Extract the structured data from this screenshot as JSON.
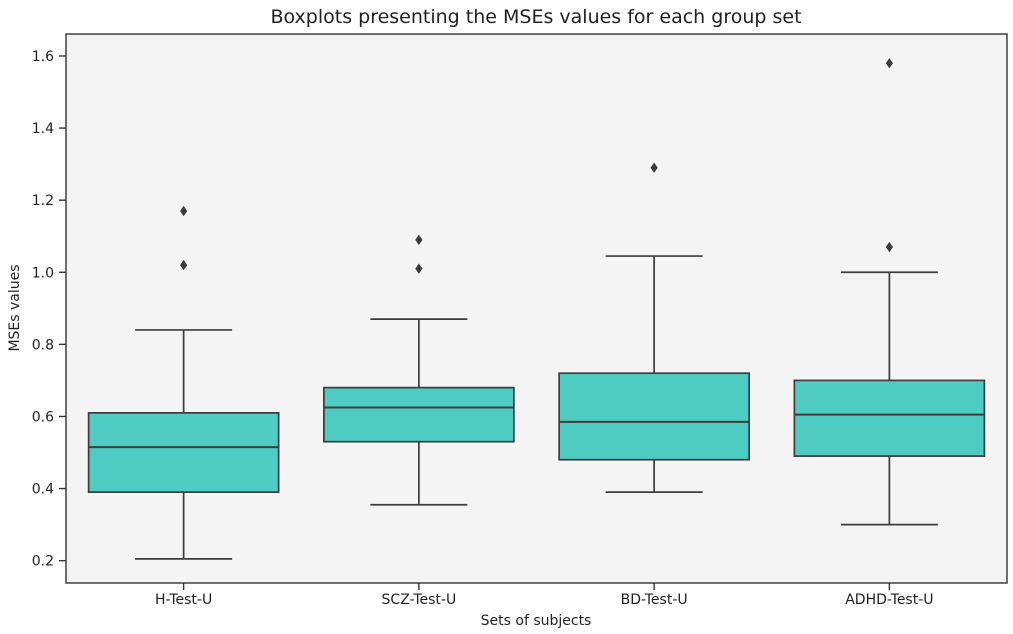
{
  "chart_data": {
    "type": "box",
    "title": "Boxplots presenting the MSEs values for each group set",
    "xlabel": "Sets of subjects",
    "ylabel": "MSEs values",
    "categories": [
      "H-Test-U",
      "SCZ-Test-U",
      "BD-Test-U",
      "ADHD-Test-U"
    ],
    "series": [
      {
        "name": "H-Test-U",
        "whisker_low": 0.205,
        "q1": 0.39,
        "median": 0.515,
        "q3": 0.61,
        "whisker_high": 0.84,
        "outliers": [
          1.02,
          1.17
        ]
      },
      {
        "name": "SCZ-Test-U",
        "whisker_low": 0.355,
        "q1": 0.53,
        "median": 0.625,
        "q3": 0.68,
        "whisker_high": 0.87,
        "outliers": [
          1.01,
          1.09
        ]
      },
      {
        "name": "BD-Test-U",
        "whisker_low": 0.39,
        "q1": 0.48,
        "median": 0.585,
        "q3": 0.72,
        "whisker_high": 1.045,
        "outliers": [
          1.29
        ]
      },
      {
        "name": "ADHD-Test-U",
        "whisker_low": 0.3,
        "q1": 0.49,
        "median": 0.605,
        "q3": 0.7,
        "whisker_high": 1.0,
        "outliers": [
          1.07,
          1.58
        ]
      }
    ],
    "yticks": [
      0.2,
      0.4,
      0.6,
      0.8,
      1.0,
      1.2,
      1.4,
      1.6
    ],
    "ylim": [
      0.138,
      1.661
    ],
    "grid": false,
    "legend_position": "none",
    "colors": {
      "box_fill": "#4FCCC2",
      "box_edge": "#3C3C3C",
      "plot_bg": "#F4F4F4",
      "figure_bg": "#FFFFFF",
      "spine": "#333333",
      "text": "#1F1F1F"
    }
  }
}
